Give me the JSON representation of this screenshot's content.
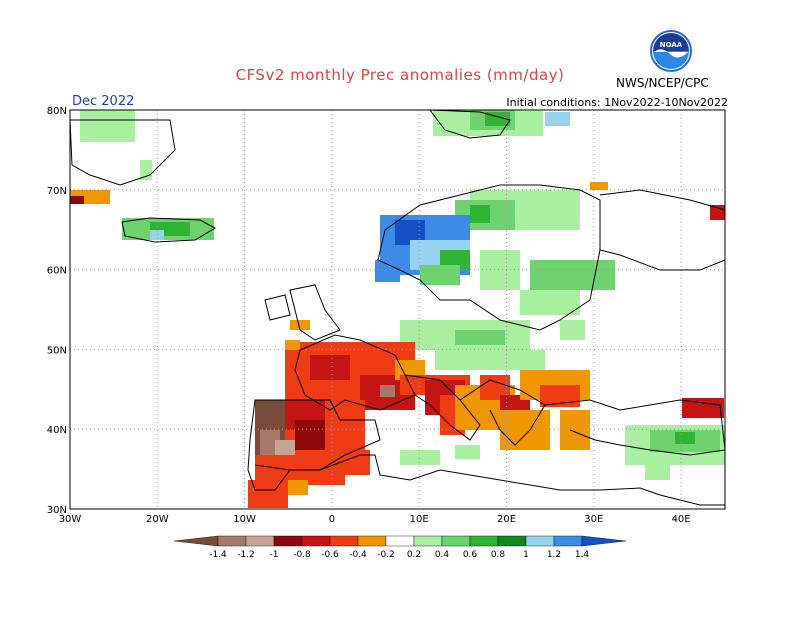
{
  "header": {
    "title": "CFSv2 monthly Prec anomalies (mm/day)",
    "month": "Dec 2022",
    "initial_conditions": "Initial conditions: 1Nov2022-10Nov2022",
    "agency": "NWS/NCEP/CPC",
    "logo_text": "NOAA"
  },
  "axes": {
    "lat_labels": [
      "80N",
      "70N",
      "60N",
      "50N",
      "40N",
      "30N"
    ],
    "lon_labels": [
      "30W",
      "20W",
      "10W",
      "0",
      "10E",
      "20E",
      "30E",
      "40E"
    ]
  },
  "colorbar": {
    "labels": [
      "-1.4",
      "-1.2",
      "-1",
      "-0.8",
      "-0.6",
      "-0.4",
      "-0.2",
      "0.2",
      "0.4",
      "0.6",
      "0.8",
      "1",
      "1.2",
      "1.4"
    ],
    "colors": [
      "#7a4a3a",
      "#a87868",
      "#c8a498",
      "#8c0a0a",
      "#c41414",
      "#f03c14",
      "#f09600",
      "#ffffff",
      "#a8f0a0",
      "#6ed26e",
      "#2eb432",
      "#0e8a1e",
      "#96d2f0",
      "#3c8ce6",
      "#1450c8"
    ]
  },
  "map_features": {
    "land_outline_color": "#000000",
    "grid_color": "#9a9a9a",
    "dry_regions": [
      "France",
      "Iberian Peninsula",
      "Italy",
      "Balkans",
      "Morocco"
    ],
    "wet_regions": [
      "Norway",
      "Iceland",
      "Svalbard",
      "Poland",
      "Baltic",
      "Turkey East"
    ]
  }
}
